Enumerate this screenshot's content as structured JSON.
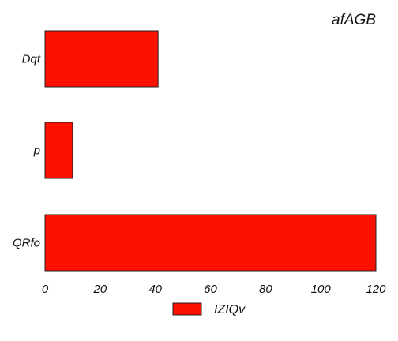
{
  "chart_data": {
    "type": "bar",
    "orientation": "horizontal",
    "title": "afAGB",
    "categories": [
      "Dqt",
      "p",
      "QRfo"
    ],
    "series": [
      {
        "name": "IZIQv",
        "values": [
          41,
          10,
          120
        ],
        "color": "#fc1000"
      }
    ],
    "xlim": [
      0,
      120
    ],
    "xticks": [
      0,
      20,
      40,
      60,
      80,
      100,
      120
    ],
    "xlabel": "",
    "ylabel": "",
    "grid": false,
    "legend_position": "bottom"
  }
}
